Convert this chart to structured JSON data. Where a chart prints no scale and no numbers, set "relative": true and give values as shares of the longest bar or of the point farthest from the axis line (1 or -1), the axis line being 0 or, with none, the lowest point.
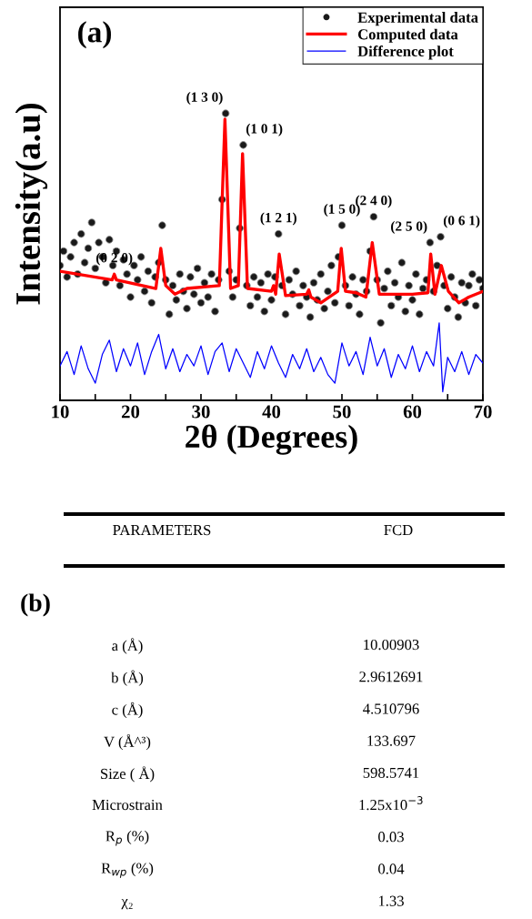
{
  "chart_data": [
    {
      "type": "line",
      "xlabel": "2θ (Degrees)",
      "ylabel": "Intensity(a.u)",
      "relative": true,
      "tick_labels": "x",
      "legend": "top right",
      "grid": false,
      "xlim": [
        10,
        70
      ],
      "xticks": [
        10,
        {
          "value": 15,
          "label": null
        },
        20,
        {
          "value": 25,
          "label": null
        },
        30,
        {
          "value": 35,
          "label": null
        },
        40,
        {
          "value": 45,
          "label": null
        },
        50,
        {
          "value": 55,
          "label": null
        },
        60,
        {
          "value": 65,
          "label": null
        },
        70
      ],
      "annotations": [
        "(a)",
        {
          "text": "(0 2 0)",
          "x": 17.7,
          "y": 0.44
        },
        {
          "text": "(1 3 0)",
          "x": 33.5,
          "y": 1.0
        },
        {
          "text": "(1 0 1)",
          "x": 36,
          "y": 0.89
        },
        {
          "text": "(1 2 1)",
          "x": 41,
          "y": 0.58
        },
        {
          "text": "(1 5 0)",
          "x": 50,
          "y": 0.61
        },
        {
          "text": "(2 4 0)",
          "x": 54.5,
          "y": 0.64
        },
        {
          "text": "(2 5 0)",
          "x": 62.5,
          "y": 0.55
        },
        {
          "text": "(0 6 1)",
          "x": 64,
          "y": 0.57
        }
      ],
      "series": [
        {
          "name": "Experimental data",
          "type": "scatter",
          "marker": "circle",
          "color": "#1a1a1a",
          "x": [
            10,
            10.5,
            11,
            11.5,
            12,
            12.5,
            13,
            13.5,
            14,
            14.5,
            15,
            15.5,
            16,
            16.5,
            17,
            17.5,
            18,
            18.5,
            19,
            19.5,
            20,
            20.5,
            21,
            21.5,
            22,
            22.5,
            23,
            23.5,
            24,
            24.5,
            25,
            25.5,
            26,
            26.5,
            27,
            27.5,
            28,
            28.5,
            29,
            29.5,
            30,
            30.5,
            31,
            31.5,
            32,
            32.5,
            33,
            33.5,
            34,
            34.5,
            35,
            35.5,
            36,
            36.5,
            37,
            37.5,
            38,
            38.5,
            39,
            39.5,
            40,
            40.5,
            41,
            41.5,
            42,
            42.5,
            43,
            43.5,
            44,
            44.5,
            45,
            45.5,
            46,
            46.5,
            47,
            47.5,
            48,
            48.5,
            49,
            49.5,
            50,
            50.5,
            51,
            51.5,
            52,
            52.5,
            53,
            53.5,
            54,
            54.5,
            55,
            55.5,
            56,
            56.5,
            57,
            57.5,
            58,
            58.5,
            59,
            59.5,
            60,
            60.5,
            61,
            61.5,
            62,
            62.5,
            63,
            63.5,
            64,
            64.5,
            65,
            65.5,
            66,
            66.5,
            67,
            67.5,
            68,
            68.5,
            69,
            69.5,
            70
          ],
          "values": [
            0.47,
            0.52,
            0.43,
            0.5,
            0.55,
            0.44,
            0.58,
            0.48,
            0.53,
            0.62,
            0.46,
            0.55,
            0.5,
            0.41,
            0.56,
            0.47,
            0.52,
            0.4,
            0.49,
            0.44,
            0.36,
            0.47,
            0.42,
            0.5,
            0.38,
            0.45,
            0.34,
            0.43,
            0.48,
            0.61,
            0.42,
            0.3,
            0.4,
            0.35,
            0.44,
            0.38,
            0.32,
            0.43,
            0.37,
            0.46,
            0.34,
            0.41,
            0.36,
            0.44,
            0.31,
            0.42,
            0.7,
            1.0,
            0.45,
            0.36,
            0.42,
            0.6,
            0.89,
            0.4,
            0.33,
            0.43,
            0.36,
            0.41,
            0.31,
            0.44,
            0.35,
            0.43,
            0.58,
            0.4,
            0.3,
            0.42,
            0.37,
            0.45,
            0.33,
            0.4,
            0.36,
            0.29,
            0.41,
            0.35,
            0.44,
            0.32,
            0.38,
            0.47,
            0.34,
            0.5,
            0.61,
            0.4,
            0.33,
            0.43,
            0.37,
            0.3,
            0.42,
            0.38,
            0.52,
            0.64,
            0.42,
            0.27,
            0.39,
            0.45,
            0.33,
            0.41,
            0.36,
            0.48,
            0.31,
            0.4,
            0.35,
            0.44,
            0.3,
            0.39,
            0.42,
            0.55,
            0.38,
            0.47,
            0.57,
            0.4,
            0.32,
            0.43,
            0.36,
            0.29,
            0.41,
            0.34,
            0.4,
            0.44,
            0.33,
            0.42,
            0.39
          ]
        },
        {
          "name": "Computed data",
          "type": "line",
          "color": "#ff0000",
          "x": [
            10,
            17.4,
            17.7,
            18,
            23.6,
            24.3,
            25,
            26.3,
            28,
            32.6,
            33.4,
            34.2,
            35.3,
            35.9,
            36.6,
            40,
            40.3,
            40.6,
            41.1,
            42,
            45,
            45.3,
            45.6,
            47,
            49.4,
            49.9,
            50.5,
            52,
            53.4,
            54.3,
            55.3,
            60,
            62.2,
            62.6,
            63.2,
            64.1,
            65.1,
            66.6,
            68,
            70
          ],
          "values": [
            0.45,
            0.42,
            0.44,
            0.42,
            0.39,
            0.53,
            0.4,
            0.37,
            0.39,
            0.4,
            0.98,
            0.39,
            0.4,
            0.86,
            0.39,
            0.38,
            0.4,
            0.37,
            0.51,
            0.365,
            0.37,
            0.385,
            0.36,
            0.34,
            0.38,
            0.53,
            0.38,
            0.375,
            0.36,
            0.55,
            0.37,
            0.37,
            0.375,
            0.51,
            0.37,
            0.47,
            0.38,
            0.34,
            0.36,
            0.38
          ]
        },
        {
          "name": "Difference plot",
          "type": "line",
          "color": "#0000ff",
          "x": [
            10,
            11,
            12,
            13,
            14,
            15,
            16,
            17,
            18,
            19,
            20,
            21,
            22,
            23,
            24,
            25,
            26,
            27,
            28,
            29,
            30,
            31,
            32,
            33,
            34,
            35,
            36,
            37,
            38,
            39,
            40,
            41,
            42,
            43,
            44,
            45,
            46,
            47,
            48,
            49,
            50,
            51,
            52,
            53,
            54,
            55,
            56,
            57,
            58,
            59,
            60,
            61,
            62,
            63,
            63.8,
            64.3,
            65,
            66,
            67,
            68,
            69,
            70
          ],
          "values": [
            0.12,
            0.17,
            0.09,
            0.19,
            0.11,
            0.06,
            0.16,
            0.21,
            0.1,
            0.18,
            0.12,
            0.2,
            0.09,
            0.17,
            0.23,
            0.11,
            0.18,
            0.1,
            0.16,
            0.12,
            0.19,
            0.09,
            0.17,
            0.2,
            0.1,
            0.18,
            0.13,
            0.08,
            0.17,
            0.11,
            0.19,
            0.13,
            0.08,
            0.16,
            0.11,
            0.18,
            0.1,
            0.15,
            0.09,
            0.06,
            0.2,
            0.12,
            0.17,
            0.09,
            0.22,
            0.12,
            0.18,
            0.08,
            0.16,
            0.11,
            0.19,
            0.1,
            0.17,
            0.12,
            0.27,
            0.03,
            0.15,
            0.1,
            0.17,
            0.09,
            0.16,
            0.13
          ]
        }
      ]
    },
    {
      "type": "other",
      "title": "(b)",
      "annotations": [
        "PARAMETERS",
        "FCD",
        "a (Å)",
        "10.00903",
        "b (Å)",
        "2.9612691",
        "c (Å)",
        "4.510796",
        "V (Å^³)",
        "133.697",
        "Size ( Å)",
        "598.5741",
        "Microstrain",
        "1.25x10$^{−3}$",
        "R$_{p}$ (%)",
        "0.03",
        "R$_{wp}$ (%)",
        "0.04",
        "χ₂",
        "1.33"
      ]
    }
  ]
}
